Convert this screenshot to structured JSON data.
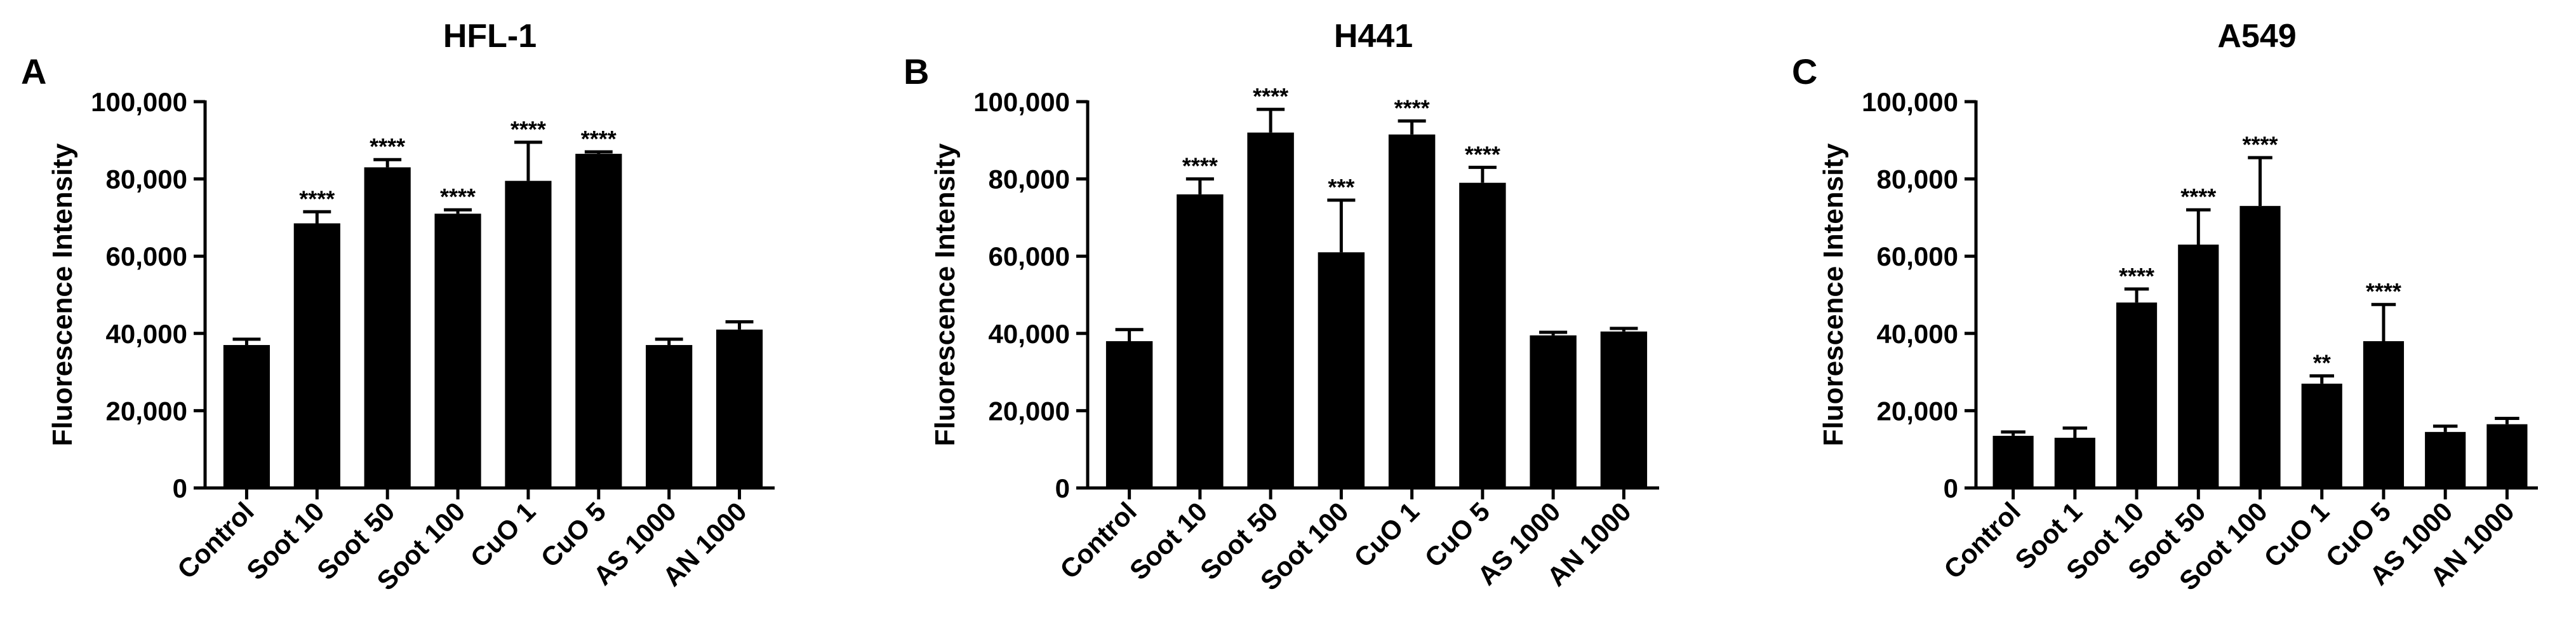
{
  "chart_data": [
    {
      "type": "bar",
      "panel_label": "A",
      "title": "HFL-1",
      "y_label": "Fluorescence Intensity",
      "categories": [
        "Control",
        "Soot 10",
        "Soot 50",
        "Soot 100",
        "CuO 1",
        "CuO 5",
        "AS 1000",
        "AN 1000"
      ],
      "values": [
        37000,
        68500,
        83000,
        71000,
        79500,
        86500,
        37000,
        41000
      ],
      "errors": [
        1500,
        3000,
        2000,
        1000,
        10000,
        500,
        1500,
        2000
      ],
      "annotations": [
        null,
        "****",
        "****",
        "****",
        "****",
        "****",
        null,
        null
      ],
      "color": "#000000",
      "ylim": [
        0,
        100000
      ],
      "yticks": [
        0,
        {
          "value": 20000,
          "label": "20,000"
        },
        {
          "value": 40000,
          "label": "40,000"
        },
        {
          "value": 60000,
          "label": "60,000"
        },
        {
          "value": 80000,
          "label": "80,000"
        },
        {
          "value": 100000,
          "label": "100,000"
        }
      ]
    },
    {
      "type": "bar",
      "panel_label": "B",
      "title": "H441",
      "y_label": "Fluorescence Intensity",
      "categories": [
        "Control",
        "Soot 10",
        "Soot 50",
        "Soot 100",
        "CuO 1",
        "CuO 5",
        "AS 1000",
        "AN 1000"
      ],
      "values": [
        38000,
        76000,
        92000,
        61000,
        91500,
        79000,
        39500,
        40500
      ],
      "errors": [
        3000,
        4000,
        6000,
        13500,
        3500,
        4000,
        800,
        800
      ],
      "annotations": [
        null,
        "****",
        "****",
        "***",
        "****",
        "****",
        null,
        null
      ],
      "color": "#000000",
      "ylim": [
        0,
        100000
      ],
      "yticks": [
        0,
        {
          "value": 20000,
          "label": "20,000"
        },
        {
          "value": 40000,
          "label": "40,000"
        },
        {
          "value": 60000,
          "label": "60,000"
        },
        {
          "value": 80000,
          "label": "80,000"
        },
        {
          "value": 100000,
          "label": "100,000"
        }
      ]
    },
    {
      "type": "bar",
      "panel_label": "C",
      "title": "A549",
      "y_label": "Fluorescence Intensity",
      "categories": [
        "Control",
        "Soot 1",
        "Soot 10",
        "Soot 50",
        "Soot 100",
        "CuO 1",
        "CuO 5",
        "AS 1000",
        "AN 1000"
      ],
      "values": [
        13500,
        13000,
        48000,
        63000,
        73000,
        27000,
        38000,
        14500,
        16500
      ],
      "errors": [
        1000,
        2500,
        3500,
        9000,
        12500,
        2000,
        9500,
        1500,
        1500
      ],
      "annotations": [
        null,
        null,
        "****",
        "****",
        "****",
        "**",
        "****",
        null,
        null
      ],
      "color": "#000000",
      "ylim": [
        0,
        100000
      ],
      "yticks": [
        0,
        {
          "value": 20000,
          "label": "20,000"
        },
        {
          "value": 40000,
          "label": "40,000"
        },
        {
          "value": 60000,
          "label": "60,000"
        },
        {
          "value": 80000,
          "label": "80,000"
        },
        {
          "value": 100000,
          "label": "100,000"
        }
      ]
    }
  ]
}
